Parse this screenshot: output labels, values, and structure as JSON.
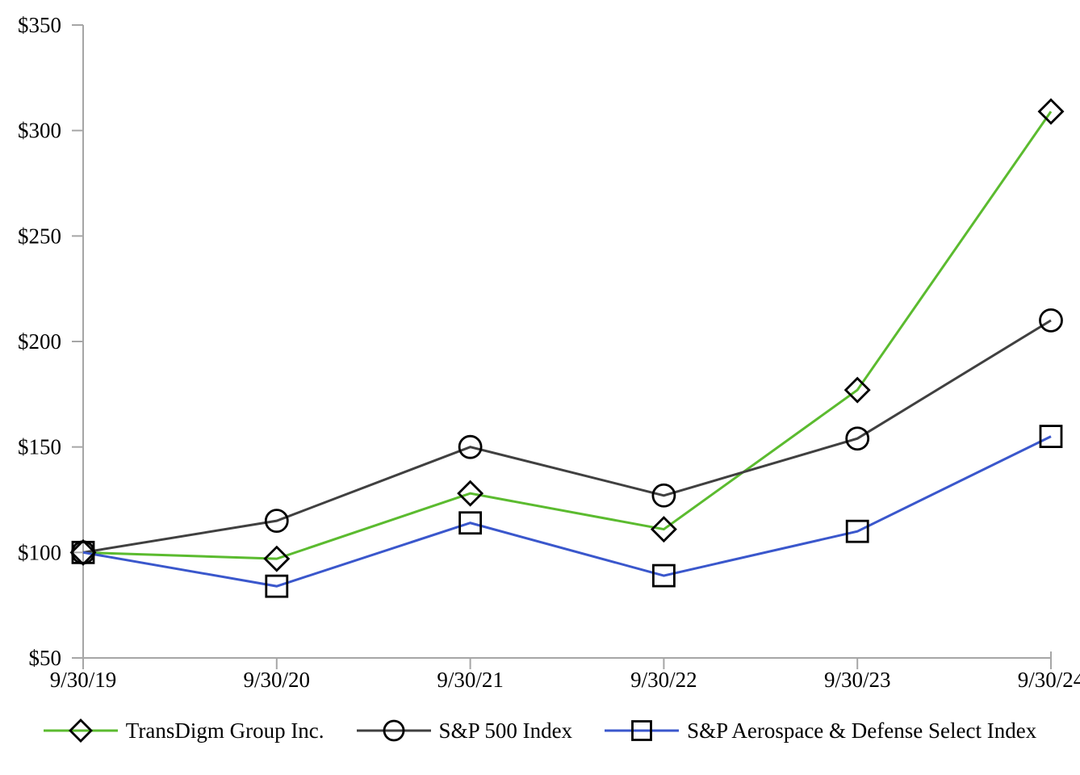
{
  "chart_data": {
    "type": "line",
    "title": "",
    "xlabel": "",
    "ylabel": "",
    "x_categories": [
      "9/30/19",
      "9/30/20",
      "9/30/21",
      "9/30/22",
      "9/30/23",
      "9/30/24"
    ],
    "y_axis": {
      "min": 50,
      "max": 350,
      "step": 50,
      "tick_prefix": "$",
      "tick_labels": [
        "$50",
        "$100",
        "$150",
        "$200",
        "$250",
        "$300",
        "$350"
      ]
    },
    "ylim": [
      50,
      350
    ],
    "grid": false,
    "legend_position": "bottom",
    "series": [
      {
        "key": "transdigm",
        "name": "TransDigm Group Inc.",
        "marker": "diamond",
        "color": "#5bbb2f",
        "values": [
          100,
          97,
          128,
          111,
          177,
          309
        ]
      },
      {
        "key": "sp500",
        "name": "S&P 500 Index",
        "marker": "circle",
        "color": "#404040",
        "values": [
          100,
          115,
          150,
          127,
          154,
          210
        ]
      },
      {
        "key": "aerospace-defense",
        "name": "S&P Aerospace & Defense Select Index",
        "marker": "square",
        "color": "#3a57cc",
        "values": [
          100,
          84,
          114,
          89,
          110,
          155
        ]
      }
    ],
    "marker_stroke": "#000000",
    "axis_color": "#a6a6a6",
    "text_color": "#000000",
    "background_color": "#ffffff"
  }
}
